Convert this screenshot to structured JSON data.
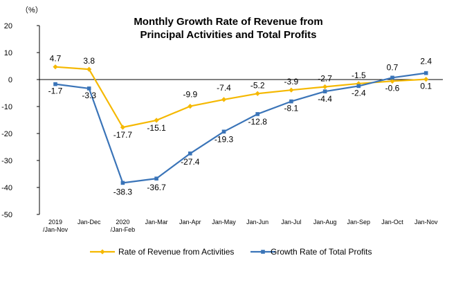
{
  "chart_data": {
    "type": "line",
    "title_lines": [
      "Monthly Growth Rate of Revenue from",
      "Principal Activities  and Total Profits"
    ],
    "unit_label": "（%）",
    "categories": [
      [
        "2019",
        "/Jan-Nov"
      ],
      [
        "Jan-Dec"
      ],
      [
        "2020",
        "/Jan-Feb"
      ],
      [
        "Jan-Mar"
      ],
      [
        "Jan-Apr"
      ],
      [
        "Jan-May"
      ],
      [
        "Jan-Jun"
      ],
      [
        "Jan-Jul"
      ],
      [
        "Jan-Aug"
      ],
      [
        "Jan-Sep"
      ],
      [
        "Jan-Oct"
      ],
      [
        "Jan-Nov"
      ]
    ],
    "ylim": [
      -50,
      20
    ],
    "yticks": [
      20,
      10,
      0,
      -10,
      -20,
      -30,
      -40,
      -50
    ],
    "grid": false,
    "legend_position": "bottom",
    "series": [
      {
        "name": "Rate of Revenue from Activities",
        "color": "#F5B800",
        "marker": "diamond",
        "values": [
          4.7,
          3.8,
          -17.7,
          -15.1,
          -9.9,
          -7.4,
          -5.2,
          -3.9,
          -2.7,
          -1.5,
          -0.6,
          0.1
        ],
        "labels": [
          "4.7",
          "3.8",
          "-17.7",
          "-15.1",
          "-9.9",
          "-7.4",
          "-5.2",
          "-3.9",
          "-2.7",
          "-1.5",
          "-0.6",
          "0.1"
        ]
      },
      {
        "name": "Growth Rate of Total Profits",
        "color": "#3A74B8",
        "marker": "square",
        "values": [
          -1.7,
          -3.3,
          -38.3,
          -36.7,
          -27.4,
          -19.3,
          -12.8,
          -8.1,
          -4.4,
          -2.4,
          0.7,
          2.4
        ],
        "labels": [
          "-1.7",
          "-3.3",
          "-38.3",
          "-36.7",
          "-27.4",
          "-19.3",
          "-12.8",
          "-8.1",
          "-4.4",
          "-2.4",
          "0.7",
          "2.4"
        ]
      }
    ]
  }
}
